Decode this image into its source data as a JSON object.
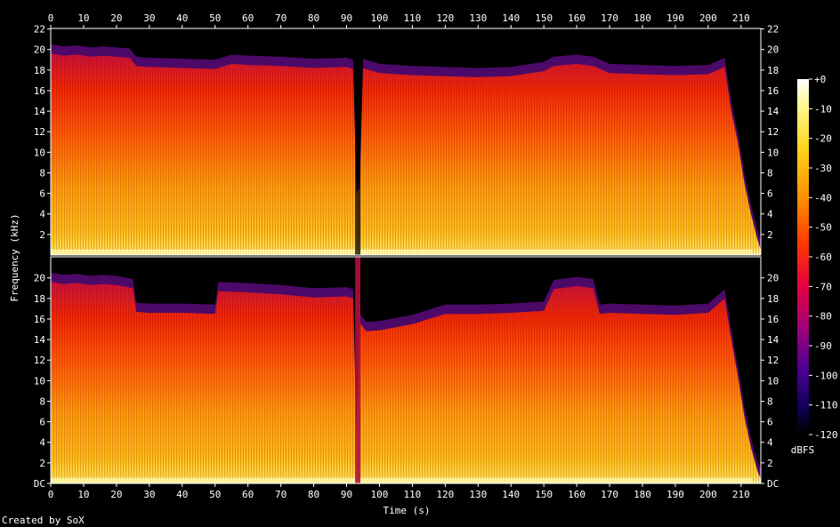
{
  "chart_data": {
    "type": "heatmap",
    "x_axis": {
      "label": "Time (s)",
      "range": [
        0,
        216
      ],
      "ticks": [
        0,
        10,
        20,
        30,
        40,
        50,
        60,
        70,
        80,
        90,
        100,
        110,
        120,
        130,
        140,
        150,
        160,
        170,
        180,
        190,
        200,
        210
      ]
    },
    "y_axis": {
      "label": "Frequency (kHz)",
      "range": [
        0,
        22.05
      ],
      "ticks_top_channel": [
        "2",
        "4",
        "6",
        "8",
        "10",
        "12",
        "14",
        "16",
        "18",
        "20",
        "22"
      ],
      "ticks_bottom_channel": [
        "DC",
        "2",
        "4",
        "6",
        "8",
        "10",
        "12",
        "14",
        "16",
        "18",
        "20"
      ]
    },
    "colorbar": {
      "label": "dBFS",
      "ticks": [
        "+0",
        "-10",
        "-20",
        "-30",
        "-40",
        "-50",
        "-60",
        "-70",
        "-80",
        "-90",
        "-100",
        "-110",
        "-120"
      ],
      "range": [
        -120,
        0
      ]
    },
    "channels": [
      {
        "cutoff_khz": [
          [
            0,
            19.6
          ],
          [
            4,
            19.4
          ],
          [
            8,
            19.5
          ],
          [
            12,
            19.3
          ],
          [
            16,
            19.4
          ],
          [
            20,
            19.3
          ],
          [
            24,
            19.2
          ],
          [
            26,
            18.4
          ],
          [
            30,
            18.3
          ],
          [
            40,
            18.2
          ],
          [
            50,
            18.1
          ],
          [
            55,
            18.6
          ],
          [
            60,
            18.5
          ],
          [
            70,
            18.4
          ],
          [
            80,
            18.2
          ],
          [
            90,
            18.3
          ],
          [
            92,
            18.1
          ],
          [
            93,
            6.0
          ],
          [
            94,
            6.5
          ],
          [
            95,
            18.2
          ],
          [
            100,
            17.7
          ],
          [
            110,
            17.5
          ],
          [
            120,
            17.4
          ],
          [
            130,
            17.3
          ],
          [
            140,
            17.4
          ],
          [
            150,
            17.9
          ],
          [
            153,
            18.4
          ],
          [
            160,
            18.6
          ],
          [
            165,
            18.4
          ],
          [
            170,
            17.7
          ],
          [
            180,
            17.6
          ],
          [
            190,
            17.5
          ],
          [
            200,
            17.6
          ],
          [
            205,
            18.3
          ],
          [
            207,
            14.0
          ],
          [
            209,
            11.0
          ],
          [
            211,
            7.0
          ],
          [
            213,
            4.0
          ],
          [
            215,
            1.5
          ],
          [
            216,
            0.5
          ]
        ]
      },
      {
        "cutoff_khz": [
          [
            0,
            19.6
          ],
          [
            4,
            19.4
          ],
          [
            8,
            19.5
          ],
          [
            12,
            19.3
          ],
          [
            16,
            19.4
          ],
          [
            20,
            19.3
          ],
          [
            25,
            19.0
          ],
          [
            26,
            16.7
          ],
          [
            30,
            16.6
          ],
          [
            40,
            16.6
          ],
          [
            50,
            16.5
          ],
          [
            51,
            18.7
          ],
          [
            60,
            18.6
          ],
          [
            70,
            18.4
          ],
          [
            80,
            18.1
          ],
          [
            90,
            18.2
          ],
          [
            92,
            18.0
          ],
          [
            93,
            5.0
          ],
          [
            94,
            15.6
          ],
          [
            96,
            14.8
          ],
          [
            100,
            14.9
          ],
          [
            110,
            15.5
          ],
          [
            120,
            16.5
          ],
          [
            130,
            16.5
          ],
          [
            140,
            16.6
          ],
          [
            150,
            16.8
          ],
          [
            153,
            18.9
          ],
          [
            160,
            19.2
          ],
          [
            165,
            19.0
          ],
          [
            167,
            16.5
          ],
          [
            170,
            16.6
          ],
          [
            180,
            16.5
          ],
          [
            190,
            16.4
          ],
          [
            200,
            16.6
          ],
          [
            205,
            18.0
          ],
          [
            207,
            14.0
          ],
          [
            209,
            10.5
          ],
          [
            211,
            6.5
          ],
          [
            213,
            3.5
          ],
          [
            215,
            1.2
          ],
          [
            216,
            0.4
          ]
        ]
      }
    ]
  },
  "footer": {
    "credit": "Created by SoX"
  }
}
